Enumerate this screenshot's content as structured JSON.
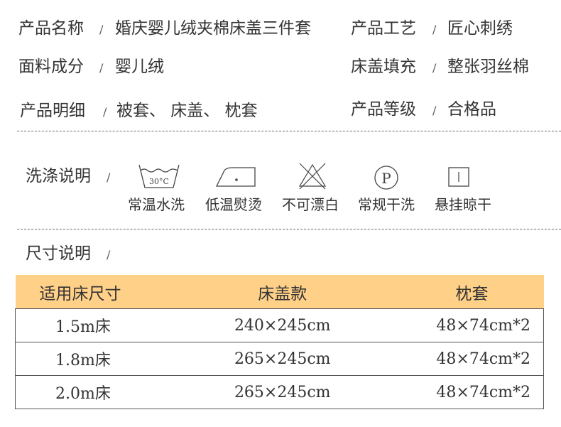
{
  "details": [
    {
      "label": "产品名称",
      "value": "婚庆婴儿绒夹棉床盖三件套"
    },
    {
      "label": "产品工艺",
      "value": "匠心刺绣"
    },
    {
      "label": "面料成分",
      "value": "婴儿绒"
    },
    {
      "label": "床盖填充",
      "value": "整张羽丝棉"
    },
    {
      "label": "产品明细",
      "value": "被套、 床盖、 枕套"
    },
    {
      "label": "产品等级",
      "value": "合格品"
    }
  ],
  "separator": "/",
  "wash": {
    "title": "洗涤说明",
    "items": [
      {
        "icon": "wash-30c-icon",
        "caption": "常温水洗",
        "icon_text": "30°C"
      },
      {
        "icon": "low-temp-iron-icon",
        "caption": "低温熨烫"
      },
      {
        "icon": "no-bleach-icon",
        "caption": "不可漂白"
      },
      {
        "icon": "dry-clean-p-icon",
        "caption": "常规干洗",
        "icon_text": "P"
      },
      {
        "icon": "hang-dry-icon",
        "caption": "悬挂晾干"
      }
    ]
  },
  "size": {
    "title": "尺寸说明",
    "header_color": "#FFD088",
    "columns": [
      "适用床尺寸",
      "床盖款",
      "枕套"
    ],
    "rows": [
      [
        "1.5m床",
        "240×245cm",
        "48×74cm*2"
      ],
      [
        "1.8m床",
        "265×245cm",
        "48×74cm*2"
      ],
      [
        "2.0m床",
        "265×245cm",
        "48×74cm*2"
      ]
    ]
  }
}
